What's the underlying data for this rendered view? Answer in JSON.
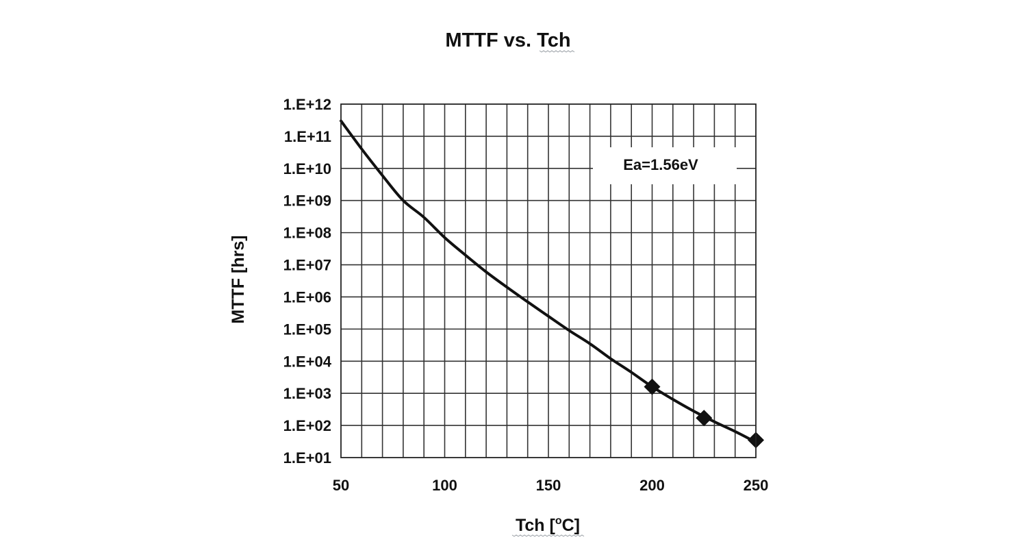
{
  "chart_data": {
    "type": "line",
    "title": "MTTF vs. Tch",
    "xlabel": "Tch [oC]",
    "xlabel_main": "Tch [",
    "xlabel_sup": "o",
    "xlabel_end": "C]",
    "ylabel": "MTTF [hrs]",
    "xlim": [
      50,
      250
    ],
    "ylim": [
      10,
      1000000000000
    ],
    "yscale": "log",
    "grid": true,
    "x_ticks": [
      50,
      100,
      150,
      200,
      250
    ],
    "x_tick_labels": [
      "50",
      "100",
      "150",
      "200",
      "250"
    ],
    "y_tick_labels": [
      "1.E+01",
      "1.E+02",
      "1.E+03",
      "1.E+04",
      "1.E+05",
      "1.E+06",
      "1.E+07",
      "1.E+08",
      "1.E+09",
      "1.E+10",
      "1.E+11",
      "1.E+12"
    ],
    "x_minor_step": 10,
    "annotation": "Ea=1.56eV",
    "series": [
      {
        "style": "line",
        "x": [
          50,
          60,
          70,
          80,
          90,
          100,
          110,
          120,
          130,
          140,
          150,
          160,
          170,
          180,
          190,
          200,
          210,
          220,
          230,
          240,
          250
        ],
        "y": [
          300000000000,
          40000000000,
          6000000000,
          1000000000,
          300000000,
          70000000,
          20000000,
          6000000,
          2000000,
          700000,
          250000,
          90000,
          35000,
          12000,
          4500,
          1600,
          650,
          280,
          130,
          65,
          30
        ]
      },
      {
        "style": "marker",
        "marker": "diamond",
        "x": [
          200,
          225,
          250
        ],
        "y": [
          1600,
          170,
          35
        ]
      }
    ]
  }
}
